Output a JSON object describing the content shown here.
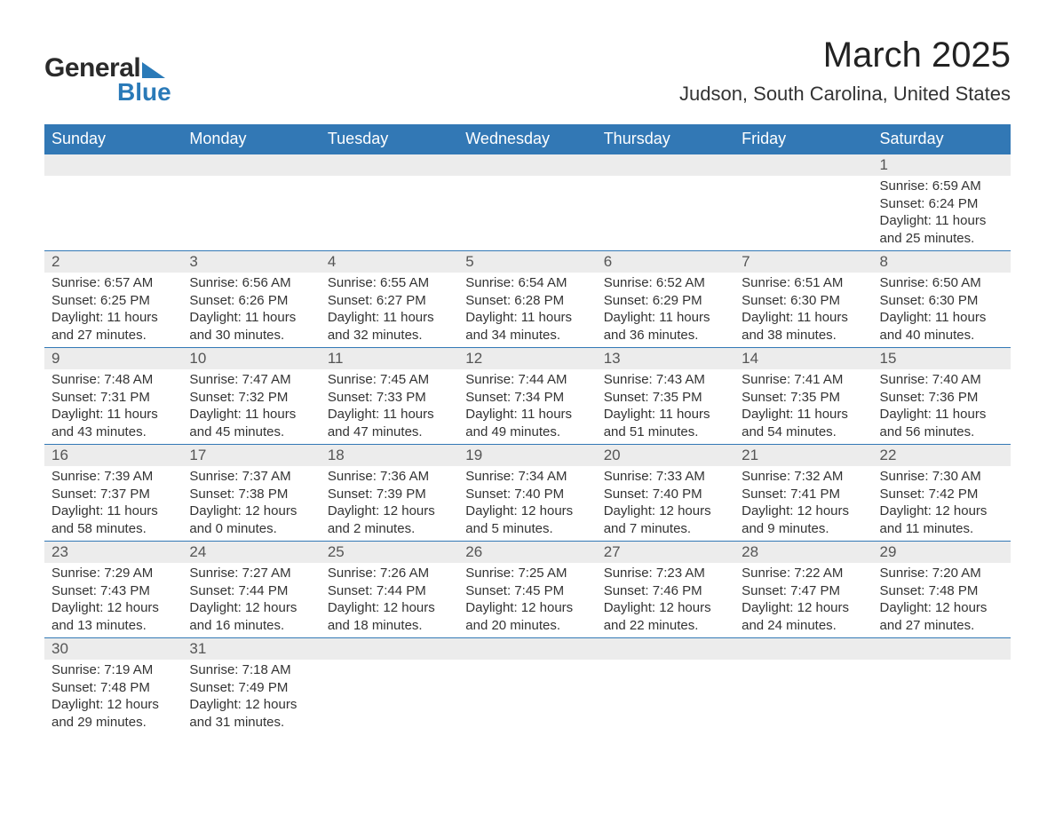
{
  "logo": {
    "text1": "General",
    "text2": "Blue"
  },
  "title": "March 2025",
  "location": "Judson, South Carolina, United States",
  "colors": {
    "header_bg": "#3278b5",
    "header_text": "#ffffff",
    "daynum_bg": "#ececec",
    "row_divider": "#3278b5",
    "body_text": "#333333",
    "logo_accent": "#2a7ab8"
  },
  "typography": {
    "title_fontsize": 40,
    "location_fontsize": 22,
    "header_fontsize": 18,
    "daynum_fontsize": 17,
    "detail_fontsize": 15,
    "logo_fontsize": 30
  },
  "day_headers": [
    "Sunday",
    "Monday",
    "Tuesday",
    "Wednesday",
    "Thursday",
    "Friday",
    "Saturday"
  ],
  "weeks": [
    [
      null,
      null,
      null,
      null,
      null,
      null,
      {
        "n": "1",
        "sr": "Sunrise: 6:59 AM",
        "ss": "Sunset: 6:24 PM",
        "d1": "Daylight: 11 hours",
        "d2": "and 25 minutes."
      }
    ],
    [
      {
        "n": "2",
        "sr": "Sunrise: 6:57 AM",
        "ss": "Sunset: 6:25 PM",
        "d1": "Daylight: 11 hours",
        "d2": "and 27 minutes."
      },
      {
        "n": "3",
        "sr": "Sunrise: 6:56 AM",
        "ss": "Sunset: 6:26 PM",
        "d1": "Daylight: 11 hours",
        "d2": "and 30 minutes."
      },
      {
        "n": "4",
        "sr": "Sunrise: 6:55 AM",
        "ss": "Sunset: 6:27 PM",
        "d1": "Daylight: 11 hours",
        "d2": "and 32 minutes."
      },
      {
        "n": "5",
        "sr": "Sunrise: 6:54 AM",
        "ss": "Sunset: 6:28 PM",
        "d1": "Daylight: 11 hours",
        "d2": "and 34 minutes."
      },
      {
        "n": "6",
        "sr": "Sunrise: 6:52 AM",
        "ss": "Sunset: 6:29 PM",
        "d1": "Daylight: 11 hours",
        "d2": "and 36 minutes."
      },
      {
        "n": "7",
        "sr": "Sunrise: 6:51 AM",
        "ss": "Sunset: 6:30 PM",
        "d1": "Daylight: 11 hours",
        "d2": "and 38 minutes."
      },
      {
        "n": "8",
        "sr": "Sunrise: 6:50 AM",
        "ss": "Sunset: 6:30 PM",
        "d1": "Daylight: 11 hours",
        "d2": "and 40 minutes."
      }
    ],
    [
      {
        "n": "9",
        "sr": "Sunrise: 7:48 AM",
        "ss": "Sunset: 7:31 PM",
        "d1": "Daylight: 11 hours",
        "d2": "and 43 minutes."
      },
      {
        "n": "10",
        "sr": "Sunrise: 7:47 AM",
        "ss": "Sunset: 7:32 PM",
        "d1": "Daylight: 11 hours",
        "d2": "and 45 minutes."
      },
      {
        "n": "11",
        "sr": "Sunrise: 7:45 AM",
        "ss": "Sunset: 7:33 PM",
        "d1": "Daylight: 11 hours",
        "d2": "and 47 minutes."
      },
      {
        "n": "12",
        "sr": "Sunrise: 7:44 AM",
        "ss": "Sunset: 7:34 PM",
        "d1": "Daylight: 11 hours",
        "d2": "and 49 minutes."
      },
      {
        "n": "13",
        "sr": "Sunrise: 7:43 AM",
        "ss": "Sunset: 7:35 PM",
        "d1": "Daylight: 11 hours",
        "d2": "and 51 minutes."
      },
      {
        "n": "14",
        "sr": "Sunrise: 7:41 AM",
        "ss": "Sunset: 7:35 PM",
        "d1": "Daylight: 11 hours",
        "d2": "and 54 minutes."
      },
      {
        "n": "15",
        "sr": "Sunrise: 7:40 AM",
        "ss": "Sunset: 7:36 PM",
        "d1": "Daylight: 11 hours",
        "d2": "and 56 minutes."
      }
    ],
    [
      {
        "n": "16",
        "sr": "Sunrise: 7:39 AM",
        "ss": "Sunset: 7:37 PM",
        "d1": "Daylight: 11 hours",
        "d2": "and 58 minutes."
      },
      {
        "n": "17",
        "sr": "Sunrise: 7:37 AM",
        "ss": "Sunset: 7:38 PM",
        "d1": "Daylight: 12 hours",
        "d2": "and 0 minutes."
      },
      {
        "n": "18",
        "sr": "Sunrise: 7:36 AM",
        "ss": "Sunset: 7:39 PM",
        "d1": "Daylight: 12 hours",
        "d2": "and 2 minutes."
      },
      {
        "n": "19",
        "sr": "Sunrise: 7:34 AM",
        "ss": "Sunset: 7:40 PM",
        "d1": "Daylight: 12 hours",
        "d2": "and 5 minutes."
      },
      {
        "n": "20",
        "sr": "Sunrise: 7:33 AM",
        "ss": "Sunset: 7:40 PM",
        "d1": "Daylight: 12 hours",
        "d2": "and 7 minutes."
      },
      {
        "n": "21",
        "sr": "Sunrise: 7:32 AM",
        "ss": "Sunset: 7:41 PM",
        "d1": "Daylight: 12 hours",
        "d2": "and 9 minutes."
      },
      {
        "n": "22",
        "sr": "Sunrise: 7:30 AM",
        "ss": "Sunset: 7:42 PM",
        "d1": "Daylight: 12 hours",
        "d2": "and 11 minutes."
      }
    ],
    [
      {
        "n": "23",
        "sr": "Sunrise: 7:29 AM",
        "ss": "Sunset: 7:43 PM",
        "d1": "Daylight: 12 hours",
        "d2": "and 13 minutes."
      },
      {
        "n": "24",
        "sr": "Sunrise: 7:27 AM",
        "ss": "Sunset: 7:44 PM",
        "d1": "Daylight: 12 hours",
        "d2": "and 16 minutes."
      },
      {
        "n": "25",
        "sr": "Sunrise: 7:26 AM",
        "ss": "Sunset: 7:44 PM",
        "d1": "Daylight: 12 hours",
        "d2": "and 18 minutes."
      },
      {
        "n": "26",
        "sr": "Sunrise: 7:25 AM",
        "ss": "Sunset: 7:45 PM",
        "d1": "Daylight: 12 hours",
        "d2": "and 20 minutes."
      },
      {
        "n": "27",
        "sr": "Sunrise: 7:23 AM",
        "ss": "Sunset: 7:46 PM",
        "d1": "Daylight: 12 hours",
        "d2": "and 22 minutes."
      },
      {
        "n": "28",
        "sr": "Sunrise: 7:22 AM",
        "ss": "Sunset: 7:47 PM",
        "d1": "Daylight: 12 hours",
        "d2": "and 24 minutes."
      },
      {
        "n": "29",
        "sr": "Sunrise: 7:20 AM",
        "ss": "Sunset: 7:48 PM",
        "d1": "Daylight: 12 hours",
        "d2": "and 27 minutes."
      }
    ],
    [
      {
        "n": "30",
        "sr": "Sunrise: 7:19 AM",
        "ss": "Sunset: 7:48 PM",
        "d1": "Daylight: 12 hours",
        "d2": "and 29 minutes."
      },
      {
        "n": "31",
        "sr": "Sunrise: 7:18 AM",
        "ss": "Sunset: 7:49 PM",
        "d1": "Daylight: 12 hours",
        "d2": "and 31 minutes."
      },
      null,
      null,
      null,
      null,
      null
    ]
  ]
}
